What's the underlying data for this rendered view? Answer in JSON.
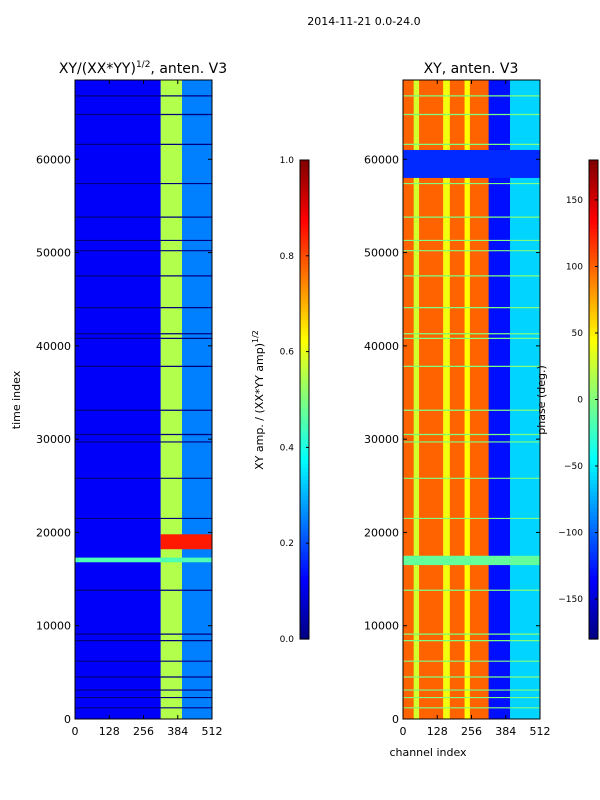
{
  "suptitle": "2014-11-21 0.0-24.0",
  "colors": {
    "jet": [
      "#00007f",
      "#0000ff",
      "#007fff",
      "#00ffff",
      "#7fff7f",
      "#ffff00",
      "#ff7f00",
      "#ff0000",
      "#7f0000"
    ]
  },
  "chart_data": [
    {
      "type": "heatmap",
      "title_main": "XY/(XX*YY)",
      "title_sup": "1/2",
      "title_rest": ", anten. V3",
      "xlabel": "",
      "ylabel": "time index",
      "xlim": [
        0,
        512
      ],
      "ylim": [
        0,
        68500
      ],
      "xticks": [
        0,
        128,
        256,
        384,
        512
      ],
      "yticks": [
        0,
        10000,
        20000,
        30000,
        40000,
        50000,
        60000
      ],
      "colorbar": {
        "label_main": "XY amp. / (XX*YY amp)",
        "label_sup": "1/2",
        "vmin": 0.0,
        "vmax": 1.0,
        "ticks": [
          0.0,
          0.2,
          0.4,
          0.6,
          0.8,
          1.0
        ],
        "tick_labels": [
          "0.0",
          "0.2",
          "0.4",
          "0.6",
          "0.8",
          "1.0"
        ]
      },
      "base_value": 0.12,
      "regions": [
        {
          "x": [
            320,
            400
          ],
          "y": [
            0,
            68500
          ],
          "value": 0.55
        },
        {
          "x": [
            400,
            512
          ],
          "y": [
            0,
            68500
          ],
          "value": 0.25
        },
        {
          "x": [
            320,
            512
          ],
          "y": [
            18200,
            19800
          ],
          "value": 0.85
        },
        {
          "x": [
            0,
            512
          ],
          "y": [
            16800,
            17300
          ],
          "value": 0.45
        }
      ],
      "gap_rows": [
        1200,
        2300,
        3100,
        4500,
        6200,
        8400,
        9100,
        13800,
        21500,
        25800,
        29700,
        30500,
        33100,
        37800,
        40800,
        41300,
        44100,
        47500,
        50200,
        51300,
        53800,
        57400,
        61600,
        64800,
        66800
      ]
    },
    {
      "type": "heatmap",
      "title_main": "XY, anten. V3",
      "title_sup": "",
      "title_rest": "",
      "xlabel": "channel index",
      "ylabel": "",
      "xlim": [
        0,
        512
      ],
      "ylim": [
        0,
        68500
      ],
      "xticks": [
        0,
        128,
        256,
        384,
        512
      ],
      "yticks": [
        0,
        10000,
        20000,
        30000,
        40000,
        50000,
        60000
      ],
      "colorbar": {
        "label_main": "phase (deg.)",
        "label_sup": "",
        "vmin": -180,
        "vmax": 180,
        "ticks": [
          -150,
          -100,
          -50,
          0,
          50,
          100,
          150
        ],
        "tick_labels": [
          "−150",
          "−100",
          "−50",
          "0",
          "50",
          "100",
          "150"
        ]
      },
      "base_value": 100,
      "regions": [
        {
          "x": [
            40,
            60
          ],
          "y": [
            0,
            68500
          ],
          "value": 30
        },
        {
          "x": [
            150,
            175
          ],
          "y": [
            0,
            68500
          ],
          "value": 40
        },
        {
          "x": [
            230,
            250
          ],
          "y": [
            0,
            68500
          ],
          "value": 45
        },
        {
          "x": [
            320,
            400
          ],
          "y": [
            0,
            68500
          ],
          "value": -130
        },
        {
          "x": [
            400,
            512
          ],
          "y": [
            0,
            68500
          ],
          "value": -60
        },
        {
          "x": [
            0,
            512
          ],
          "y": [
            16500,
            17500
          ],
          "value": -10
        },
        {
          "x": [
            0,
            512
          ],
          "y": [
            58000,
            61000
          ],
          "value": -120
        }
      ],
      "gap_rows": [
        1200,
        2300,
        3100,
        4500,
        6200,
        8400,
        9100,
        13800,
        21500,
        25800,
        29700,
        30500,
        33100,
        37800,
        40800,
        41300,
        44100,
        47500,
        50200,
        51300,
        53800,
        57400,
        61600,
        64800,
        66800
      ]
    }
  ]
}
